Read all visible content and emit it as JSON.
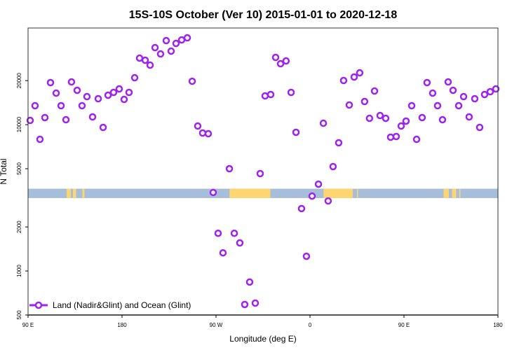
{
  "chart_data": {
    "type": "scatter",
    "title": "15S-10S October (Ver 10)   2015-01-01 to 2020-12-18",
    "xlabel": "Longitude (deg E)",
    "ylabel": "N Total",
    "yscale": "log",
    "xlim": [
      90,
      540
    ],
    "ylim": [
      500,
      45800
    ],
    "x_ticks": [
      {
        "value": 90,
        "label": "90 E"
      },
      {
        "value": 180,
        "label": "180"
      },
      {
        "value": 270,
        "label": "90 W"
      },
      {
        "value": 360,
        "label": "0"
      },
      {
        "value": 450,
        "label": "90 E"
      },
      {
        "value": 540,
        "label": "180"
      }
    ],
    "y_ticks": [
      {
        "value": 500,
        "label": "500"
      },
      {
        "value": 1000,
        "label": "1000"
      },
      {
        "value": 2000,
        "label": "2000"
      },
      {
        "value": 5000,
        "label": "5000"
      },
      {
        "value": 10000,
        "label": "10000"
      },
      {
        "value": 20000,
        "label": "20000"
      }
    ],
    "grid": false,
    "legend": {
      "position": "bottom-left",
      "entries": [
        "Land (Nadir&Glint) and Ocean (Glint)"
      ]
    },
    "colors": {
      "series": "#a020f0",
      "ocean": "#a7bedb",
      "land": "#fdd672"
    },
    "land_band": {
      "y_range": [
        3150,
        3650
      ],
      "land_segments": [
        [
          127,
          131
        ],
        [
          133,
          136
        ],
        [
          142,
          144
        ],
        [
          283,
          322
        ],
        [
          373,
          401
        ],
        [
          405,
          406
        ],
        [
          488,
          493
        ],
        [
          496,
          500
        ],
        [
          503,
          504
        ]
      ]
    },
    "series": [
      {
        "name": "Land (Nadir&Glint) and Ocean (Glint)",
        "x": [
          92.0,
          96.7,
          101.4,
          106.1,
          111.5,
          116.9,
          121.6,
          126.3,
          131.6,
          137.0,
          141.7,
          146.4,
          151.8,
          157.2,
          161.9,
          166.6,
          171.9,
          177.3,
          182.0,
          186.7,
          192.1,
          196.8,
          202.2,
          206.9,
          211.6,
          216.9,
          222.3,
          227.0,
          231.7,
          237.1,
          242.5,
          247.2,
          252.5,
          257.2,
          262.6,
          267.3,
          272.0,
          276.7,
          282.8,
          287.5,
          292.8,
          297.5,
          302.2,
          307.6,
          312.3,
          317.0,
          322.4,
          327.1,
          331.8,
          337.1,
          341.9,
          346.6,
          351.9,
          356.6,
          362.0,
          368.1,
          372.8,
          377.4,
          382.1,
          387.5,
          392.2,
          397.6,
          402.3,
          407.6,
          412.3,
          417.0,
          421.8,
          427.1,
          432.5,
          437.2,
          442.6,
          447.3,
          452.0,
          457.4,
          462.1,
          467.4,
          472.1,
          477.5,
          482.2,
          486.9,
          492.3,
          497.0,
          502.4,
          507.1,
          512.4,
          517.8,
          522.5,
          527.2,
          532.6,
          538.0
        ],
        "y": [
          10690,
          13480,
          7940,
          11180,
          19390,
          16430,
          13480,
          10810,
          19600,
          17170,
          13480,
          15550,
          11300,
          15050,
          9580,
          15900,
          16620,
          17560,
          14880,
          16620,
          20940,
          28500,
          27580,
          25530,
          33630,
          30450,
          37550,
          31820,
          35930,
          37960,
          39240,
          19810,
          9790,
          8770,
          8670,
          3440,
          1810,
          1330,
          5000,
          1810,
          1555,
          590,
          840,
          603,
          4630,
          15720,
          16080,
          28830,
          26100,
          27270,
          16620,
          8870,
          2670,
          1260,
          3250,
          3920,
          10230,
          3010,
          5170,
          7520,
          20040,
          13630,
          21170,
          22620,
          14400,
          11050,
          16980,
          11550,
          11050,
          8210,
          8300,
          9790,
          10580,
          13480,
          7940,
          11180,
          19390,
          16430,
          13480,
          10810,
          19600,
          17170,
          13480,
          15550,
          11300,
          15050,
          9580,
          16080,
          16800,
          17560
        ]
      }
    ]
  }
}
